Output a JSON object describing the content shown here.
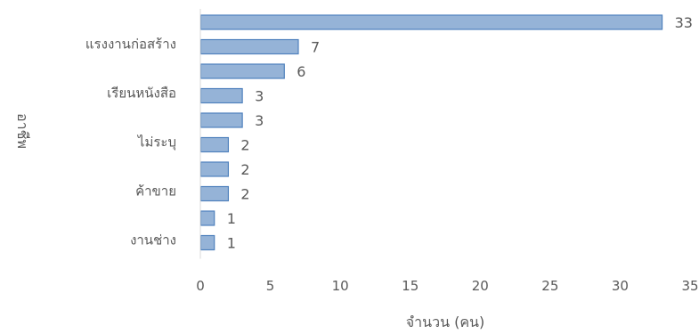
{
  "chart_data": {
    "type": "bar",
    "orientation": "horizontal",
    "categories": [
      "",
      "แรงงานก่อสร้าง",
      "",
      "เรียนหนังสือ",
      "",
      "ไม่ระบุ",
      "",
      "ค้าขาย",
      "",
      "งานช่าง"
    ],
    "values": [
      33,
      7,
      6,
      3,
      3,
      2,
      2,
      2,
      1,
      1
    ],
    "xlabel": "จำนวน (คน)",
    "ylabel": "อาชีพ",
    "xlim": [
      0,
      35
    ],
    "xticks": [
      "0",
      "5",
      "10",
      "15",
      "20",
      "25",
      "30",
      "35"
    ],
    "grid": false,
    "legend": false,
    "colors": {
      "bar_fill": "#95b3d7",
      "bar_stroke": "#4f81bd",
      "axis": "#bfbfbf",
      "text": "#595959"
    }
  }
}
